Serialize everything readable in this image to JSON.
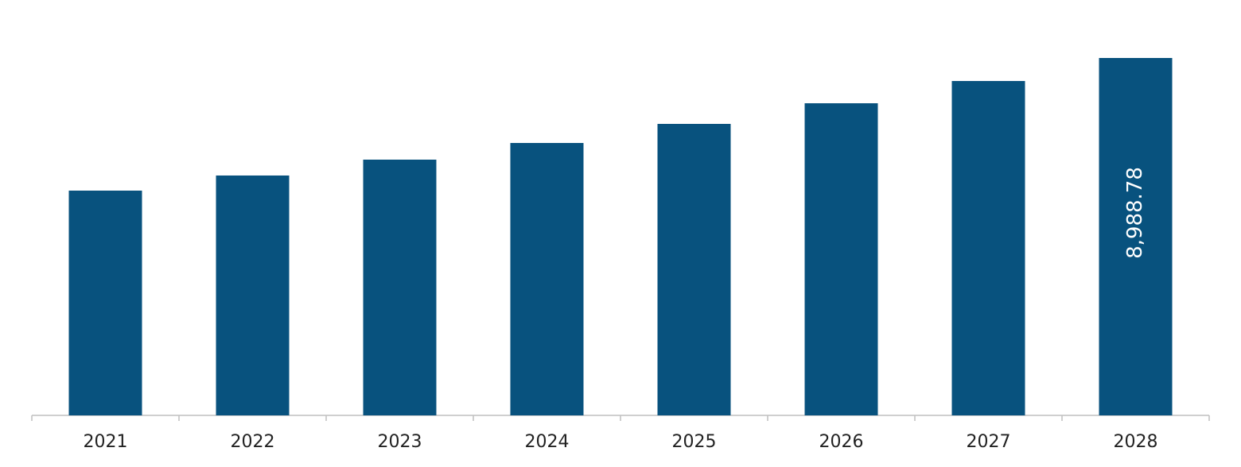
{
  "chart_data": {
    "type": "bar",
    "categories": [
      "2021",
      "2022",
      "2023",
      "2024",
      "2025",
      "2026",
      "2027",
      "2028"
    ],
    "values": [
      5653,
      6033,
      6432,
      6851,
      7331,
      7850,
      8410,
      8988.78
    ],
    "value_labels": [
      null,
      null,
      null,
      null,
      null,
      null,
      null,
      "8,988.78"
    ],
    "color": "#08527e"
  }
}
